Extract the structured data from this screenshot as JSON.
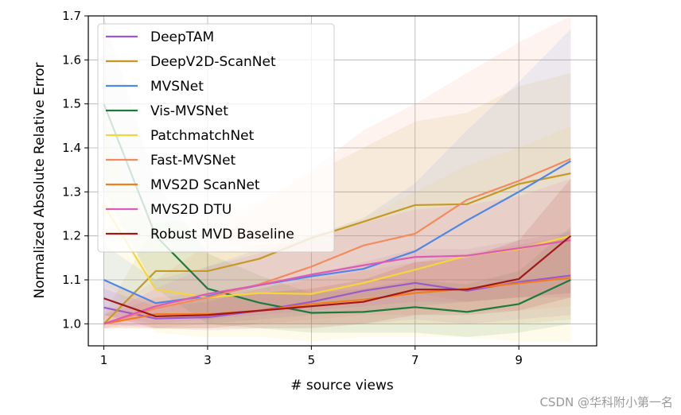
{
  "chart_data": {
    "type": "line",
    "xlabel": "# source views",
    "ylabel": "Normalized Absolute Relative Error",
    "xlim": [
      0.7,
      10.5
    ],
    "ylim": [
      0.95,
      1.7
    ],
    "xticks": [
      1,
      3,
      5,
      7,
      9
    ],
    "yticks": [
      1.0,
      1.1,
      1.2,
      1.3,
      1.4,
      1.5,
      1.6,
      1.7
    ],
    "grid": true,
    "legend_position": "top-left",
    "x": [
      1,
      2,
      3,
      4,
      5,
      6,
      7,
      8,
      9,
      10
    ],
    "series": [
      {
        "name": "DeepTAM",
        "color": "#9b59d0",
        "values": [
          1.037,
          1.012,
          1.015,
          1.03,
          1.05,
          1.075,
          1.093,
          1.075,
          1.095,
          1.11
        ],
        "band_lower": [
          1.0,
          0.99,
          0.985,
          0.99,
          0.99,
          1.0,
          1.01,
          1.0,
          1.01,
          1.02
        ],
        "band_upper": [
          1.08,
          1.04,
          1.05,
          1.08,
          1.11,
          1.14,
          1.17,
          1.17,
          1.19,
          1.21
        ]
      },
      {
        "name": "DeepV2D-ScanNet",
        "color": "#c49a25",
        "values": [
          1.0,
          1.12,
          1.12,
          1.148,
          1.195,
          1.232,
          1.27,
          1.272,
          1.318,
          1.342
        ],
        "band_lower": [
          0.99,
          1.02,
          1.01,
          1.03,
          1.04,
          1.06,
          1.07,
          1.05,
          1.06,
          1.07
        ],
        "band_upper": [
          1.02,
          1.23,
          1.24,
          1.28,
          1.34,
          1.4,
          1.46,
          1.48,
          1.54,
          1.57
        ]
      },
      {
        "name": "MVSNet",
        "color": "#4f86e8",
        "values": [
          1.1,
          1.047,
          1.063,
          1.088,
          1.108,
          1.125,
          1.165,
          1.235,
          1.3,
          1.37
        ],
        "band_lower": [
          1.02,
          1.0,
          1.0,
          1.01,
          1.02,
          1.03,
          1.04,
          1.05,
          1.06,
          1.07
        ],
        "band_upper": [
          1.18,
          1.1,
          1.13,
          1.17,
          1.2,
          1.24,
          1.32,
          1.44,
          1.55,
          1.67
        ]
      },
      {
        "name": "Vis-MVSNet",
        "color": "#1c7a3e",
        "values": [
          1.5,
          1.2,
          1.08,
          1.048,
          1.025,
          1.027,
          1.038,
          1.027,
          1.045,
          1.1
        ],
        "band_lower": [
          1.3,
          1.08,
          1.0,
          0.99,
          0.98,
          0.98,
          0.98,
          0.97,
          0.98,
          1.0
        ],
        "band_upper": [
          1.7,
          1.32,
          1.16,
          1.11,
          1.07,
          1.08,
          1.1,
          1.09,
          1.12,
          1.22
        ]
      },
      {
        "name": "PatchmatchNet",
        "color": "#f5d63a",
        "values": [
          1.27,
          1.078,
          1.06,
          1.07,
          1.068,
          1.093,
          1.123,
          1.155,
          1.17,
          1.2
        ],
        "band_lower": [
          1.1,
          0.98,
          0.97,
          0.97,
          0.96,
          0.97,
          0.97,
          0.97,
          0.96,
          0.96
        ],
        "band_upper": [
          1.45,
          1.18,
          1.16,
          1.18,
          1.2,
          1.24,
          1.3,
          1.36,
          1.4,
          1.45
        ]
      },
      {
        "name": "Fast-MVSNet",
        "color": "#f48a5e",
        "values": [
          1.0,
          1.035,
          1.06,
          1.09,
          1.13,
          1.178,
          1.205,
          1.282,
          1.325,
          1.375
        ],
        "band_lower": [
          0.99,
          0.99,
          1.0,
          1.0,
          1.01,
          1.02,
          1.02,
          1.03,
          1.03,
          1.04
        ],
        "band_upper": [
          1.02,
          1.1,
          1.18,
          1.27,
          1.35,
          1.44,
          1.5,
          1.57,
          1.64,
          1.7
        ]
      },
      {
        "name": "MVS2D ScanNet",
        "color": "#f07d1e",
        "values": [
          1.0,
          1.022,
          1.022,
          1.03,
          1.045,
          1.055,
          1.07,
          1.08,
          1.092,
          1.105
        ],
        "band_lower": [
          0.99,
          0.99,
          0.99,
          0.99,
          0.99,
          1.0,
          1.0,
          1.0,
          1.0,
          1.01
        ],
        "band_upper": [
          1.02,
          1.06,
          1.07,
          1.08,
          1.1,
          1.12,
          1.14,
          1.16,
          1.18,
          1.2
        ]
      },
      {
        "name": "MVS2D DTU",
        "color": "#dd5bb4",
        "values": [
          1.0,
          1.04,
          1.068,
          1.088,
          1.112,
          1.133,
          1.152,
          1.155,
          1.172,
          1.19
        ],
        "band_lower": [
          0.99,
          1.0,
          1.01,
          1.02,
          1.03,
          1.04,
          1.05,
          1.05,
          1.06,
          1.06
        ],
        "band_upper": [
          1.02,
          1.08,
          1.13,
          1.16,
          1.2,
          1.23,
          1.26,
          1.27,
          1.29,
          1.33
        ]
      },
      {
        "name": "Robust MVD Baseline",
        "color": "#a01818",
        "values": [
          1.058,
          1.017,
          1.02,
          1.03,
          1.04,
          1.05,
          1.078,
          1.078,
          1.102,
          1.2
        ],
        "band_lower": [
          1.02,
          0.99,
          0.99,
          1.0,
          1.0,
          1.0,
          1.02,
          1.02,
          1.03,
          1.06
        ],
        "band_upper": [
          1.1,
          1.05,
          1.06,
          1.07,
          1.08,
          1.1,
          1.14,
          1.15,
          1.19,
          1.33
        ]
      }
    ]
  },
  "watermark": "CSDN @华科附小第一名"
}
